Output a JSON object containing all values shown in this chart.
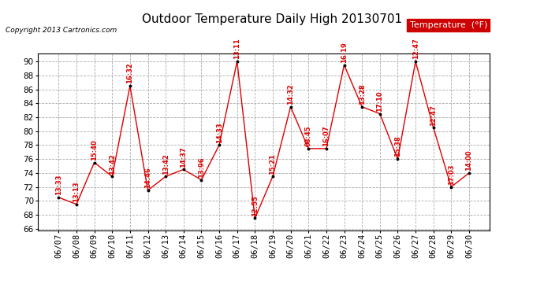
{
  "title": "Outdoor Temperature Daily High 20130701",
  "copyright": "Copyright 2013 Cartronics.com",
  "legend_label": "Temperature  (°F)",
  "dates": [
    "06/07",
    "06/08",
    "06/09",
    "06/10",
    "06/11",
    "06/12",
    "06/13",
    "06/14",
    "06/15",
    "06/16",
    "06/17",
    "06/18",
    "06/19",
    "06/20",
    "06/21",
    "06/22",
    "06/23",
    "06/24",
    "06/25",
    "06/26",
    "06/27",
    "06/28",
    "06/29",
    "06/30"
  ],
  "values": [
    70.5,
    69.5,
    75.5,
    73.5,
    86.5,
    71.5,
    73.5,
    74.5,
    73.0,
    78.0,
    90.0,
    67.5,
    73.5,
    83.5,
    77.5,
    77.5,
    89.5,
    83.5,
    82.5,
    76.0,
    90.0,
    80.5,
    72.0,
    74.0
  ],
  "point_labels": [
    "13:33",
    "13:13",
    "15:40",
    "13:42",
    "16:32",
    "14:46",
    "13:42",
    "14:37",
    "13:96",
    "14:33",
    "13:11",
    "12:55",
    "15:21",
    "14:32",
    "08:45",
    "16:07",
    "16:19",
    "13:28",
    "17:10",
    "15:38",
    "12:47",
    "12:47",
    "17:03",
    "14:00"
  ],
  "line_color": "#dd0000",
  "marker_color": "black",
  "label_color": "#dd0000",
  "bg_color": "white",
  "grid_color": "#aaaaaa",
  "ylim": [
    65.8,
    91.2
  ],
  "yticks": [
    66.0,
    68.0,
    70.0,
    72.0,
    74.0,
    76.0,
    78.0,
    80.0,
    82.0,
    84.0,
    86.0,
    88.0,
    90.0
  ],
  "title_fontsize": 11,
  "label_fontsize": 6,
  "tick_fontsize": 7.5,
  "legend_box_color": "#cc0000",
  "legend_text_color": "white",
  "legend_fontsize": 8
}
